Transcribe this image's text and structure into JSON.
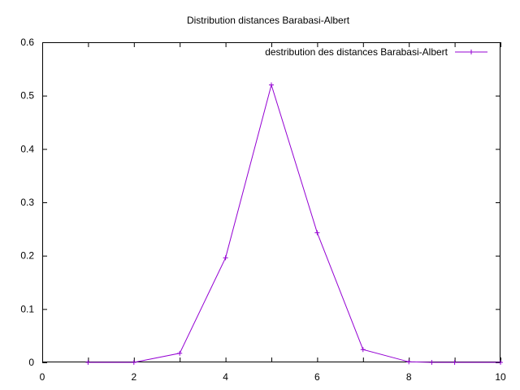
{
  "chart_data": {
    "type": "line",
    "title": "Distribution distances Barabasi-Albert",
    "xlabel": "",
    "ylabel": "",
    "xlim": [
      0,
      10
    ],
    "ylim": [
      0,
      0.6
    ],
    "x_ticks": [
      "0",
      "2",
      "4",
      "6",
      "8",
      "10"
    ],
    "y_ticks": [
      "0",
      "0.1",
      "0.2",
      "0.3",
      "0.4",
      "0.5",
      "0.6"
    ],
    "grid": false,
    "legend_position": "top-right",
    "series": [
      {
        "name": "destribution des distances Barabasi-Albert",
        "color": "#9400d3",
        "marker": "plus",
        "x": [
          1,
          2,
          3,
          4,
          5,
          6,
          7,
          8,
          8.5,
          9,
          10
        ],
        "y": [
          0,
          0,
          0.017,
          0.196,
          0.52,
          0.243,
          0.024,
          0.001,
          0,
          0,
          0
        ]
      }
    ]
  }
}
